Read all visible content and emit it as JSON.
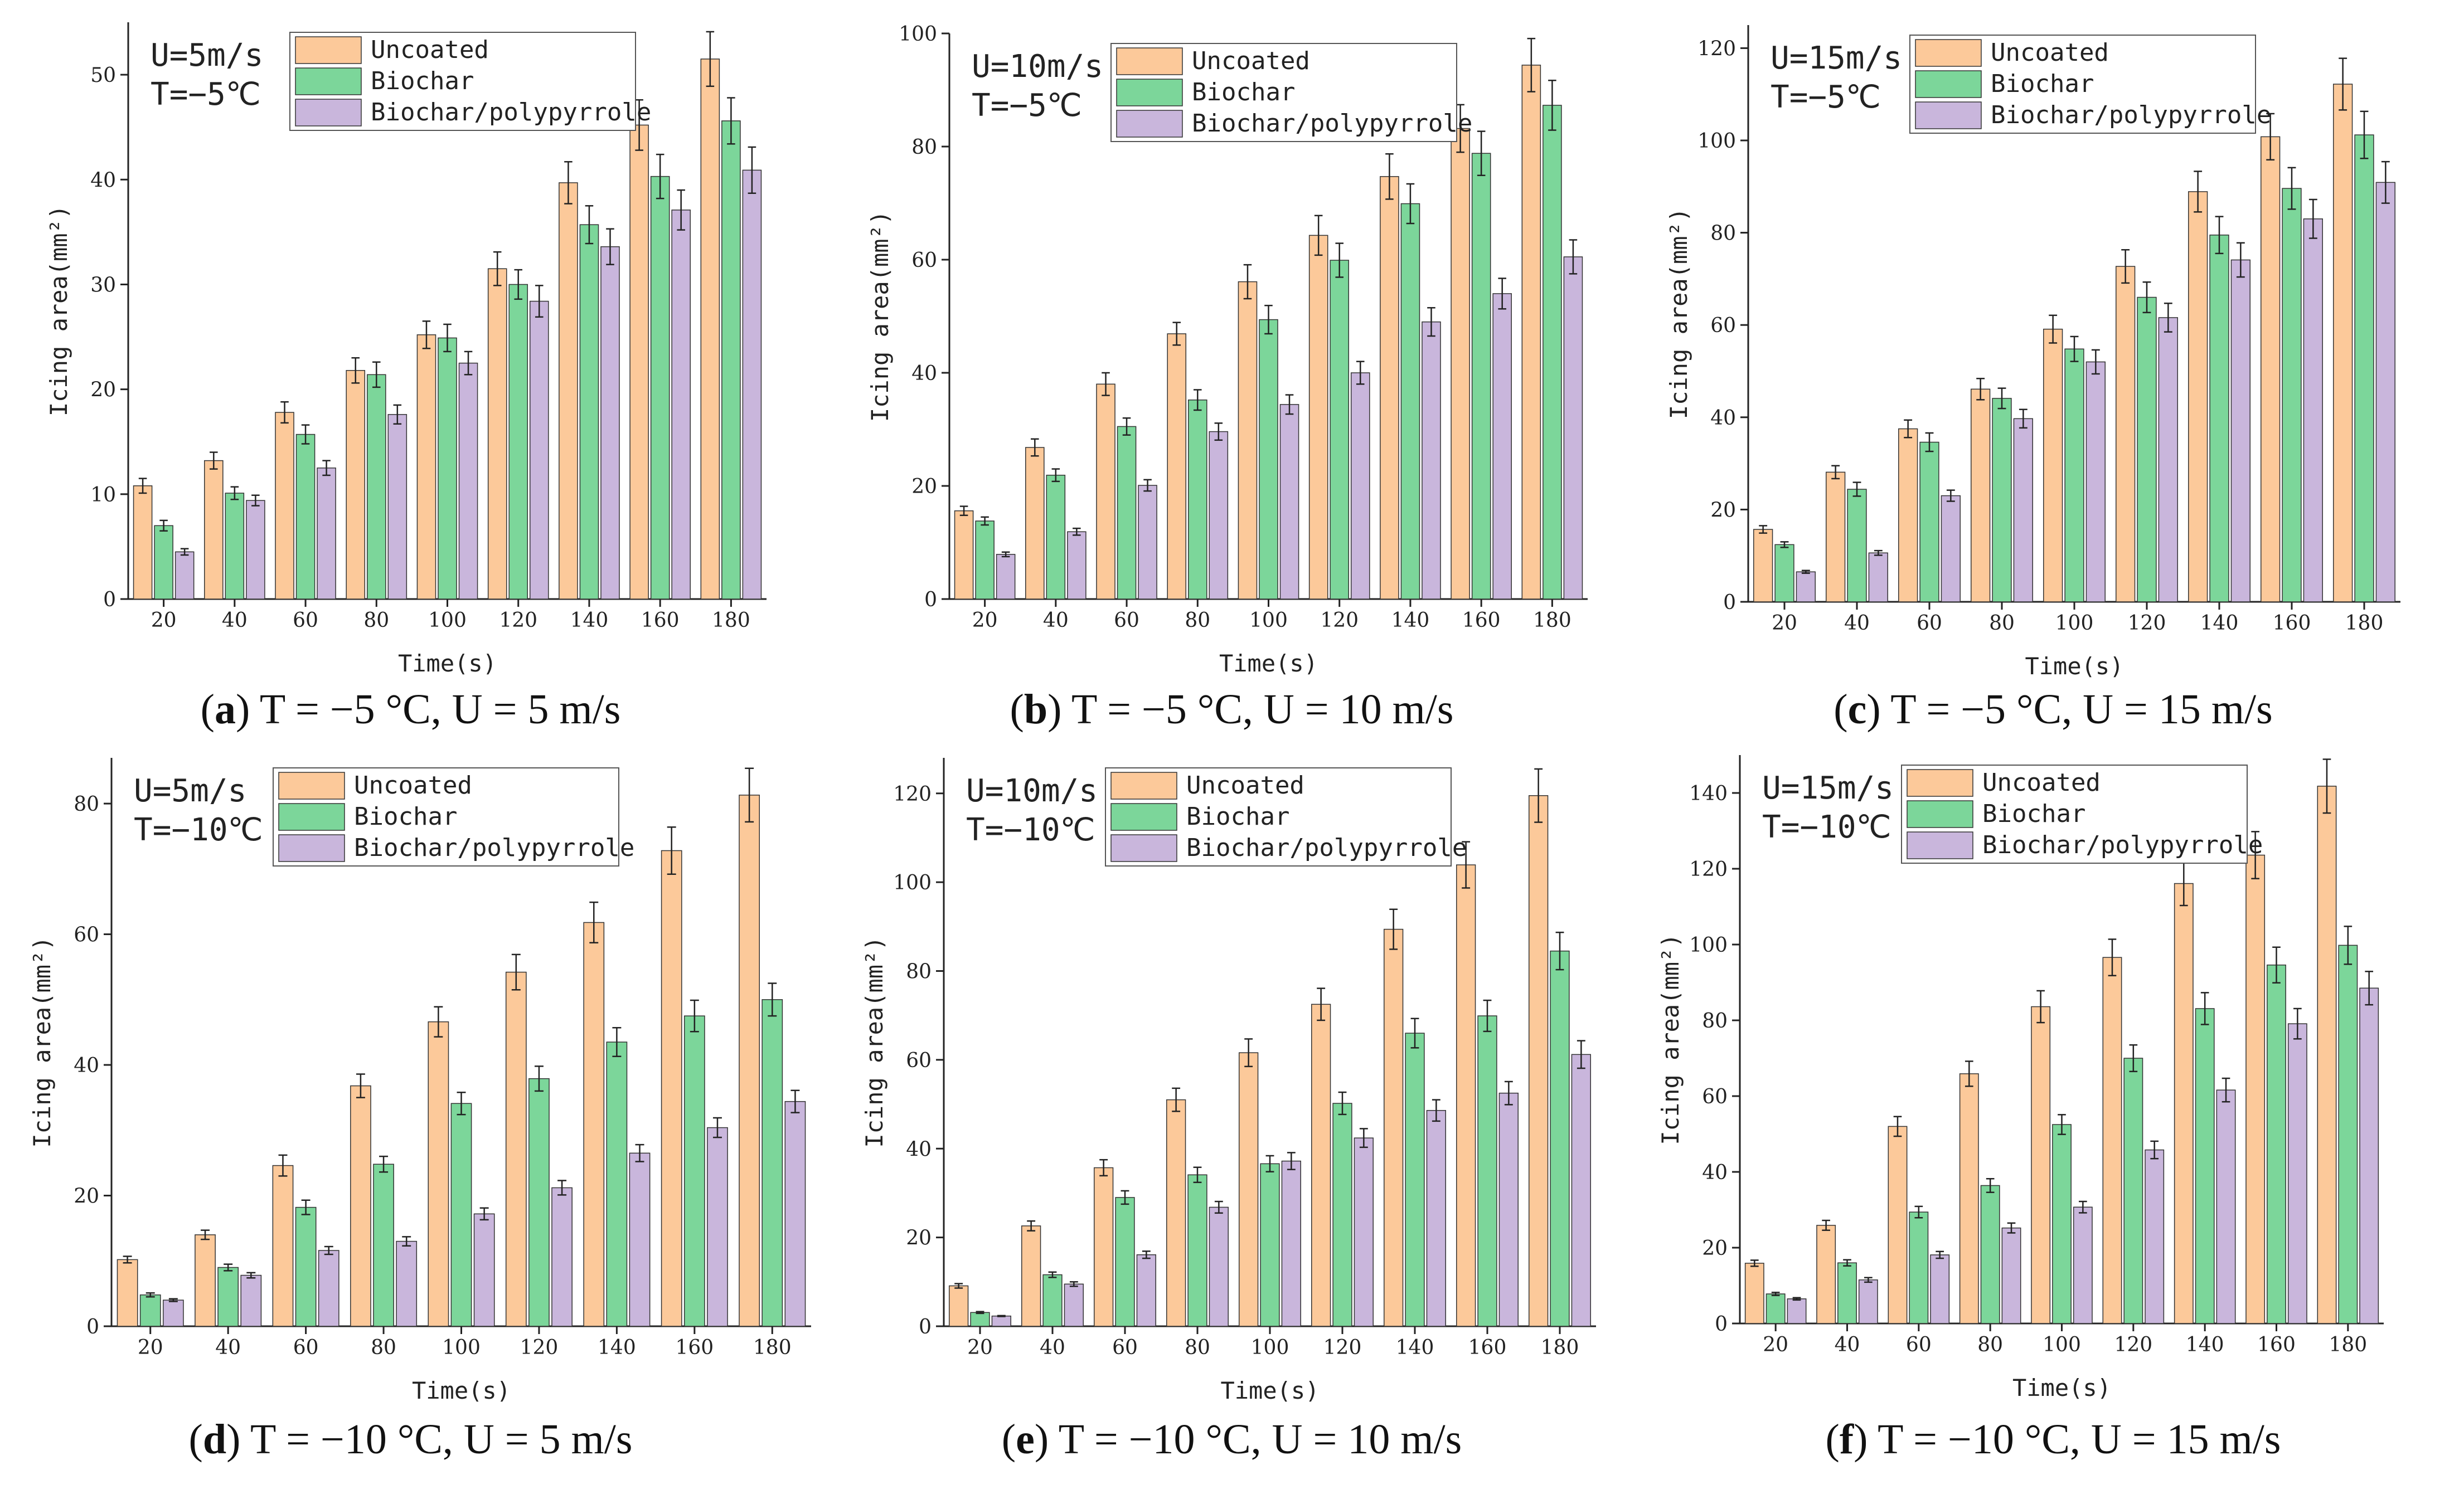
{
  "colors": {
    "uncoated": "#fcc99a",
    "biochar": "#7cd69a",
    "biochar_polypyrrole": "#c9b6dc",
    "bar_stroke": "#333333",
    "axis": "#222222"
  },
  "chart_data": [
    {
      "type": "bar",
      "caption_letter": "a",
      "caption_text": "T = −5 °C, U = 5 m/s",
      "cond_u": "U=5m/s",
      "cond_t": "T=−5℃",
      "xlabel": "Time(s)",
      "ylabel": "Icing area(mm²)",
      "ylim": [
        0,
        55
      ],
      "yticks": [
        0,
        10,
        20,
        30,
        40,
        50
      ],
      "categories": [
        "20",
        "40",
        "60",
        "80",
        "100",
        "120",
        "140",
        "160",
        "180"
      ],
      "legend": [
        "Uncoated",
        "Biochar",
        "Biochar/polypyrrole"
      ],
      "series": [
        {
          "name": "Uncoated",
          "values": [
            10.8,
            13.2,
            17.8,
            21.8,
            25.2,
            31.5,
            39.7,
            45.2,
            51.5
          ],
          "errors": [
            0.7,
            0.8,
            1.0,
            1.2,
            1.3,
            1.6,
            2.0,
            2.4,
            2.6
          ]
        },
        {
          "name": "Biochar",
          "values": [
            7.0,
            10.1,
            15.7,
            21.4,
            24.9,
            30.0,
            35.7,
            40.3,
            45.6
          ],
          "errors": [
            0.5,
            0.6,
            0.9,
            1.2,
            1.3,
            1.4,
            1.8,
            2.1,
            2.2
          ]
        },
        {
          "name": "Biochar/polypyrrole",
          "values": [
            4.5,
            9.4,
            12.5,
            17.6,
            22.5,
            28.4,
            33.6,
            37.1,
            40.9
          ],
          "errors": [
            0.3,
            0.5,
            0.7,
            0.9,
            1.1,
            1.5,
            1.7,
            1.9,
            2.2
          ]
        }
      ]
    },
    {
      "type": "bar",
      "caption_letter": "b",
      "caption_text": "T = −5 °C, U = 10 m/s",
      "cond_u": "U=10m/s",
      "cond_t": "T=−5℃",
      "xlabel": "Time(s)",
      "ylabel": "Icing area(mm²)",
      "ylim": [
        0,
        100
      ],
      "yticks": [
        0,
        20,
        40,
        60,
        80,
        100
      ],
      "categories": [
        "20",
        "40",
        "60",
        "80",
        "100",
        "120",
        "140",
        "160",
        "180"
      ],
      "legend": [
        "Uncoated",
        "Biochar",
        "Biochar/polypyrrole"
      ],
      "series": [
        {
          "name": "Uncoated",
          "values": [
            15.6,
            26.8,
            38.0,
            46.9,
            56.1,
            64.3,
            74.7,
            83.2,
            94.4
          ],
          "errors": [
            0.8,
            1.5,
            2.0,
            2.0,
            3.0,
            3.5,
            4.0,
            4.2,
            4.7
          ]
        },
        {
          "name": "Biochar",
          "values": [
            13.8,
            21.9,
            30.5,
            35.2,
            49.4,
            59.9,
            69.9,
            78.8,
            87.3
          ],
          "errors": [
            0.7,
            1.1,
            1.5,
            1.8,
            2.5,
            3.0,
            3.5,
            3.9,
            4.4
          ]
        },
        {
          "name": "Biochar/polypyrrole",
          "values": [
            7.9,
            11.9,
            20.1,
            29.6,
            34.4,
            40.0,
            49.0,
            54.0,
            60.5
          ],
          "errors": [
            0.4,
            0.6,
            1.0,
            1.5,
            1.7,
            2.0,
            2.5,
            2.7,
            3.0
          ]
        }
      ]
    },
    {
      "type": "bar",
      "caption_letter": "c",
      "caption_text": "T = −5 °C, U = 15 m/s",
      "cond_u": "U=15m/s",
      "cond_t": "T=−5℃",
      "xlabel": "Time(s)",
      "ylabel": "Icing area(mm²)",
      "ylim": [
        0,
        125
      ],
      "yticks": [
        0,
        20,
        40,
        60,
        80,
        100,
        120
      ],
      "categories": [
        "20",
        "40",
        "60",
        "80",
        "100",
        "120",
        "140",
        "160",
        "180"
      ],
      "legend": [
        "Uncoated",
        "Biochar",
        "Biochar/polypyrrole"
      ],
      "series": [
        {
          "name": "Uncoated",
          "values": [
            15.7,
            28.1,
            37.5,
            46.1,
            59.1,
            72.7,
            88.9,
            100.8,
            112.2
          ],
          "errors": [
            0.8,
            1.4,
            1.9,
            2.3,
            3.0,
            3.6,
            4.4,
            5.0,
            5.6
          ]
        },
        {
          "name": "Biochar",
          "values": [
            12.4,
            24.4,
            34.6,
            44.1,
            54.8,
            66.0,
            79.5,
            89.6,
            101.2
          ],
          "errors": [
            0.6,
            1.5,
            2.0,
            2.2,
            2.7,
            3.3,
            4.0,
            4.5,
            5.1
          ]
        },
        {
          "name": "Biochar/polypyrrole",
          "values": [
            6.5,
            10.6,
            23.0,
            39.7,
            52.0,
            61.6,
            74.1,
            83.0,
            90.9
          ],
          "errors": [
            0.3,
            0.5,
            1.2,
            2.0,
            2.6,
            3.1,
            3.7,
            4.2,
            4.5
          ]
        }
      ]
    },
    {
      "type": "bar",
      "caption_letter": "d",
      "caption_text": "T = −10 °C, U = 5 m/s",
      "cond_u": "U=5m/s",
      "cond_t": "T=−10℃",
      "xlabel": "Time(s)",
      "ylabel": "Icing area(mm²)",
      "ylim": [
        0,
        87
      ],
      "yticks": [
        0,
        20,
        40,
        60,
        80
      ],
      "categories": [
        "20",
        "40",
        "60",
        "80",
        "100",
        "120",
        "140",
        "160",
        "180"
      ],
      "legend": [
        "Uncoated",
        "Biochar",
        "Biochar/polypyrrole"
      ],
      "series": [
        {
          "name": "Uncoated",
          "values": [
            10.2,
            14.0,
            24.6,
            36.8,
            46.6,
            54.2,
            61.8,
            72.8,
            81.3
          ],
          "errors": [
            0.5,
            0.7,
            1.6,
            1.8,
            2.3,
            2.7,
            3.1,
            3.6,
            4.1
          ]
        },
        {
          "name": "Biochar",
          "values": [
            4.8,
            9.0,
            18.2,
            24.8,
            34.1,
            37.9,
            43.5,
            47.5,
            50.0
          ],
          "errors": [
            0.3,
            0.5,
            1.1,
            1.2,
            1.7,
            1.9,
            2.2,
            2.4,
            2.5
          ]
        },
        {
          "name": "Biochar/polypyrrole",
          "values": [
            4.0,
            7.8,
            11.6,
            13.0,
            17.2,
            21.2,
            26.5,
            30.4,
            34.4
          ],
          "errors": [
            0.2,
            0.4,
            0.6,
            0.7,
            0.9,
            1.1,
            1.3,
            1.5,
            1.7
          ]
        }
      ]
    },
    {
      "type": "bar",
      "caption_letter": "e",
      "caption_text": "T = −10 °C, U = 10 m/s",
      "cond_u": "U=10m/s",
      "cond_t": "T=−10℃",
      "xlabel": "Time(s)",
      "ylabel": "Icing area(mm²)",
      "ylim": [
        0,
        128
      ],
      "yticks": [
        0,
        20,
        40,
        60,
        80,
        100,
        120
      ],
      "categories": [
        "20",
        "40",
        "60",
        "80",
        "100",
        "120",
        "140",
        "160",
        "180"
      ],
      "legend": [
        "Uncoated",
        "Biochar",
        "Biochar/polypyrrole"
      ],
      "series": [
        {
          "name": "Uncoated",
          "values": [
            9.1,
            22.6,
            35.7,
            51.0,
            61.6,
            72.5,
            89.4,
            103.9,
            119.5
          ],
          "errors": [
            0.5,
            1.1,
            1.8,
            2.6,
            3.1,
            3.6,
            4.5,
            5.2,
            6.0
          ]
        },
        {
          "name": "Biochar",
          "values": [
            3.1,
            11.6,
            29.0,
            34.1,
            36.6,
            50.2,
            66.0,
            69.9,
            84.5
          ],
          "errors": [
            0.2,
            0.6,
            1.5,
            1.7,
            1.8,
            2.5,
            3.3,
            3.5,
            4.2
          ]
        },
        {
          "name": "Biochar/polypyrrole",
          "values": [
            2.3,
            9.5,
            16.1,
            26.8,
            37.2,
            42.4,
            48.6,
            52.5,
            61.2
          ],
          "errors": [
            0.1,
            0.5,
            0.8,
            1.3,
            1.9,
            2.1,
            2.4,
            2.6,
            3.1
          ]
        }
      ]
    },
    {
      "type": "bar",
      "caption_letter": "f",
      "caption_text": "T = −10 °C, U = 15 m/s",
      "cond_u": "U=15m/s",
      "cond_t": "T=−10℃",
      "xlabel": "Time(s)",
      "ylabel": "Icing area(mm²)",
      "ylim": [
        0,
        150
      ],
      "yticks": [
        0,
        20,
        40,
        60,
        80,
        100,
        120,
        140
      ],
      "categories": [
        "20",
        "40",
        "60",
        "80",
        "100",
        "120",
        "140",
        "160",
        "180"
      ],
      "legend": [
        "Uncoated",
        "Biochar",
        "Biochar/polypyrrole"
      ],
      "series": [
        {
          "name": "Uncoated",
          "values": [
            15.9,
            25.9,
            52.0,
            65.9,
            83.6,
            96.6,
            116.1,
            123.6,
            141.8
          ],
          "errors": [
            0.8,
            1.3,
            2.6,
            3.3,
            4.2,
            4.8,
            5.8,
            6.2,
            7.1
          ]
        },
        {
          "name": "Biochar",
          "values": [
            7.8,
            16.0,
            29.4,
            36.4,
            52.5,
            70.0,
            83.1,
            94.6,
            99.8
          ],
          "errors": [
            0.4,
            0.8,
            1.5,
            1.8,
            2.6,
            3.5,
            4.2,
            4.7,
            5.0
          ]
        },
        {
          "name": "Biochar/polypyrrole",
          "values": [
            6.5,
            11.5,
            18.1,
            25.2,
            30.7,
            45.8,
            61.6,
            79.1,
            88.5
          ],
          "errors": [
            0.3,
            0.6,
            0.9,
            1.3,
            1.5,
            2.3,
            3.1,
            4.0,
            4.4
          ]
        }
      ]
    }
  ]
}
